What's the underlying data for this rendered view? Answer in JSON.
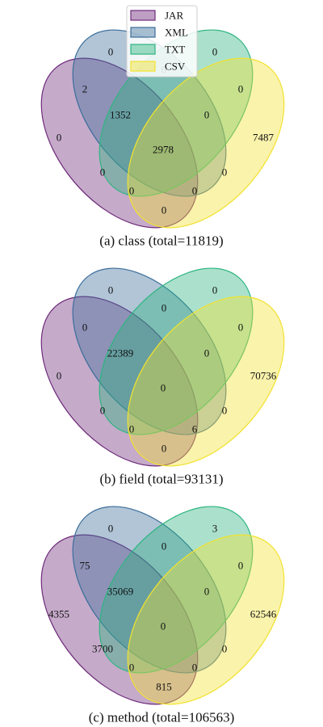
{
  "colors": {
    "JAR": "#6e2a7a",
    "XML": "#3b6e9a",
    "TXT": "#2eb580",
    "CSV": "#f2e22f"
  },
  "legend": [
    "JAR",
    "XML",
    "TXT",
    "CSV"
  ],
  "panels": [
    {
      "caption": "(a) class (total=11819)",
      "regions": {
        "xml_only": "0",
        "txt_only": "0",
        "jar_xml": "2",
        "xml_txt": "0",
        "txt_csv": "0",
        "jar_only": "0",
        "jar_xml_txt": "1352",
        "xml_txt_csv": "0",
        "csv_only": "7487",
        "all": "2978",
        "jar_txt": "0",
        "xml_csv": "0",
        "jar_txt_csv": "0",
        "jar_xml_csv": "0",
        "jar_csv": "0"
      }
    },
    {
      "caption": "(b) field (total=93131)",
      "regions": {
        "xml_only": "0",
        "txt_only": "0",
        "jar_xml": "0",
        "xml_txt": "0",
        "txt_csv": "0",
        "jar_only": "0",
        "jar_xml_txt": "22389",
        "xml_txt_csv": "0",
        "csv_only": "70736",
        "all": "0",
        "jar_txt": "0",
        "xml_csv": "0",
        "jar_txt_csv": "0",
        "jar_xml_csv": "6",
        "jar_csv": "0"
      }
    },
    {
      "caption": "(c) method (total=106563)",
      "regions": {
        "xml_only": "0",
        "txt_only": "3",
        "jar_xml": "75",
        "xml_txt": "0",
        "txt_csv": "0",
        "jar_only": "4355",
        "jar_xml_txt": "35069",
        "xml_txt_csv": "0",
        "csv_only": "62546",
        "all": "0",
        "jar_txt": "3700",
        "xml_csv": "0",
        "jar_txt_csv": "0",
        "jar_xml_csv": "0",
        "jar_csv": "815"
      }
    }
  ]
}
